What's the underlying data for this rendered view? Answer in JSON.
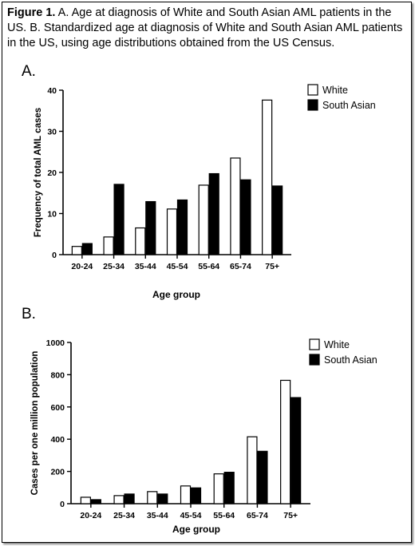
{
  "caption": {
    "label": "Figure 1.",
    "text": " A. Age at diagnosis of White and South Asian AML patients in the US. B. Standardized age at diagnosis of White and South Asian AML patients in the US, using age distributions obtained from the US Census."
  },
  "panels": [
    "A.",
    "B."
  ],
  "colors": {
    "white_fill": "#ffffff",
    "south_asian_fill": "#000000",
    "axis": "#000000"
  },
  "chart_data": [
    {
      "type": "bar",
      "title": "",
      "xlabel": "Age group",
      "ylabel": "Frequency of total AML cases",
      "ylim": [
        0,
        40
      ],
      "yticks": [
        0,
        10,
        20,
        30,
        40
      ],
      "categories": [
        "20-24",
        "25-34",
        "35-44",
        "45-54",
        "55-64",
        "65-74",
        "75+"
      ],
      "legend_position": "top-right",
      "series": [
        {
          "name": "White",
          "values": [
            2,
            4.3,
            6.5,
            11.1,
            16.9,
            23.5,
            37.6
          ]
        },
        {
          "name": "South Asian",
          "values": [
            2.7,
            17.1,
            12.9,
            13.3,
            19.7,
            18.2,
            16.7
          ]
        }
      ]
    },
    {
      "type": "bar",
      "title": "",
      "xlabel": "Age group",
      "ylabel": "Cases per one million population",
      "ylim": [
        0,
        1000
      ],
      "yticks": [
        0,
        200,
        400,
        600,
        800,
        1000
      ],
      "categories": [
        "20-24",
        "25-34",
        "35-44",
        "45-54",
        "55-64",
        "65-74",
        "75+"
      ],
      "legend_position": "top-right",
      "series": [
        {
          "name": "White",
          "values": [
            40,
            50,
            75,
            110,
            185,
            415,
            765
          ]
        },
        {
          "name": "South Asian",
          "values": [
            25,
            60,
            60,
            98,
            195,
            325,
            658
          ]
        }
      ]
    }
  ]
}
